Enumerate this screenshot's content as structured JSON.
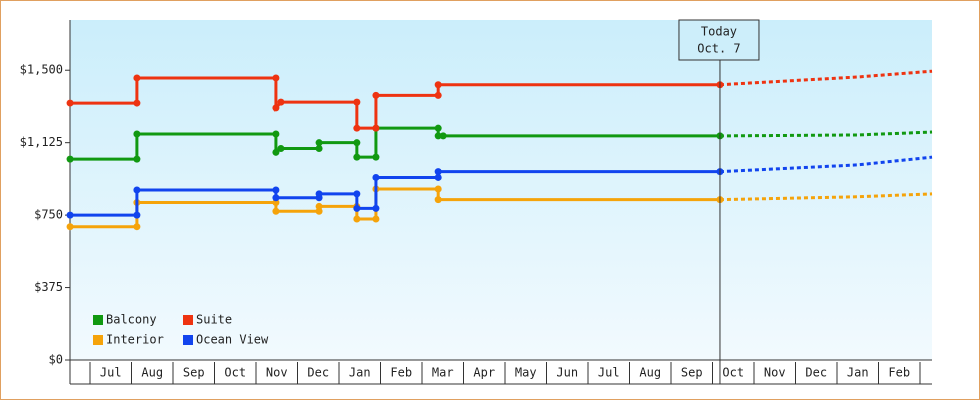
{
  "chart_data": {
    "type": "step-line",
    "categories": [
      "Jul",
      "Aug",
      "Sep",
      "Oct",
      "Nov",
      "Dec",
      "Jan",
      "Feb",
      "Mar",
      "Apr",
      "May",
      "Jun",
      "Jul",
      "Aug",
      "Sep",
      "Oct",
      "Nov",
      "Dec",
      "Jan",
      "Feb"
    ],
    "xlim": [
      -0.48,
      20.29
    ],
    "ylim": [
      0,
      1760
    ],
    "yticks": [
      {
        "value": 0,
        "label": "$0"
      },
      {
        "value": 375,
        "label": "$375"
      },
      {
        "value": 750,
        "label": "$750"
      },
      {
        "value": 1125,
        "label": "$1,125"
      },
      {
        "value": 1500,
        "label": "$1,500"
      }
    ],
    "today": {
      "x": 15.18,
      "label": "Today",
      "date": "Oct. 7"
    },
    "series": [
      {
        "name": "Balcony",
        "color": "#119911",
        "x": [
          -0.48,
          1.13,
          1.13,
          4.48,
          4.48,
          4.6,
          5.52,
          5.52,
          6.43,
          6.43,
          6.89,
          6.89,
          8.39,
          8.39,
          8.51,
          15.18
        ],
        "values": [
          1040,
          1040,
          1170,
          1170,
          1075,
          1095,
          1095,
          1125,
          1125,
          1050,
          1050,
          1200,
          1200,
          1160,
          1160,
          1160
        ],
        "forecast": {
          "x": [
            15.18,
            18.5,
            20.29
          ],
          "values": [
            1160,
            1165,
            1180
          ]
        }
      },
      {
        "name": "Suite",
        "color": "#ee3311",
        "x": [
          -0.48,
          1.13,
          1.13,
          4.48,
          4.48,
          4.6,
          6.43,
          6.43,
          6.89,
          6.89,
          8.39,
          8.39,
          15.18
        ],
        "values": [
          1330,
          1330,
          1460,
          1460,
          1305,
          1335,
          1335,
          1200,
          1200,
          1370,
          1370,
          1425,
          1425
        ],
        "forecast": {
          "x": [
            15.18,
            18.5,
            20.29
          ],
          "values": [
            1425,
            1465,
            1495
          ]
        }
      },
      {
        "name": "Interior",
        "color": "#f5a30a",
        "x": [
          -0.48,
          1.13,
          1.13,
          4.48,
          4.48,
          5.52,
          5.52,
          6.43,
          6.43,
          6.89,
          6.89,
          8.39,
          8.39,
          15.18
        ],
        "values": [
          690,
          690,
          815,
          815,
          770,
          770,
          795,
          795,
          730,
          730,
          885,
          885,
          830,
          830
        ],
        "forecast": {
          "x": [
            15.18,
            18.5,
            20.29
          ],
          "values": [
            830,
            845,
            860
          ]
        }
      },
      {
        "name": "Ocean View",
        "color": "#1144ee",
        "x": [
          -0.48,
          1.13,
          1.13,
          4.48,
          4.48,
          5.52,
          5.52,
          6.43,
          6.43,
          6.89,
          6.89,
          8.39,
          8.39,
          15.18
        ],
        "values": [
          750,
          750,
          880,
          880,
          840,
          840,
          860,
          860,
          785,
          785,
          945,
          945,
          975,
          975
        ],
        "forecast": {
          "x": [
            15.18,
            18.5,
            20.29
          ],
          "values": [
            975,
            1010,
            1050
          ]
        }
      }
    ]
  }
}
